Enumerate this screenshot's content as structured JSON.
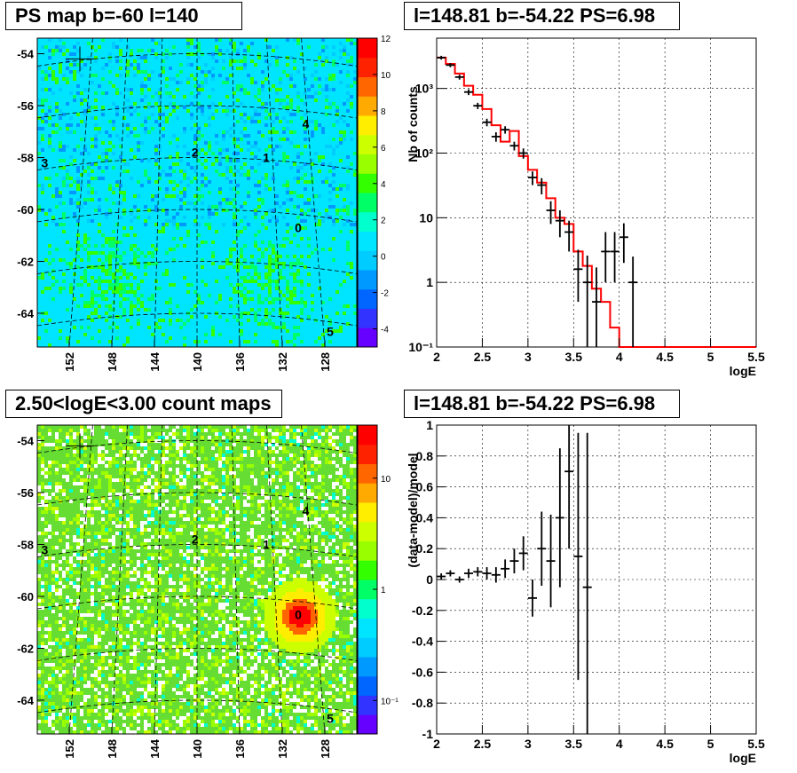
{
  "panels": {
    "map1": {
      "title": "PS map b=-60 l=140",
      "y_ticks": [
        "-54",
        "-56",
        "-58",
        "-60",
        "-62",
        "-64"
      ],
      "x_ticks": [
        "152",
        "148",
        "144",
        "140",
        "136",
        "132",
        "128"
      ],
      "colorbar_ticks": [
        "12",
        "10",
        "8",
        "6",
        "4",
        "2",
        "0",
        "-2",
        "-4"
      ],
      "sources": [
        "0",
        "1",
        "2",
        "3",
        "4",
        "5"
      ]
    },
    "spectrum": {
      "title": "l=148.81 b=-54.22 PS=6.98",
      "ylabel": "Nb of counts",
      "xlabel": "logE",
      "x_ticks": [
        "2",
        "2.5",
        "3",
        "3.5",
        "4",
        "4.5",
        "5",
        "5.5"
      ],
      "y_ticks": [
        "10⁻¹",
        "1",
        "10",
        "10²",
        "10³"
      ]
    },
    "map2": {
      "title": "2.50<logE<3.00 count maps",
      "y_ticks": [
        "-54",
        "-56",
        "-58",
        "-60",
        "-62",
        "-64"
      ],
      "x_ticks": [
        "152",
        "148",
        "144",
        "140",
        "136",
        "132",
        "128"
      ],
      "colorbar_ticks": [
        "10",
        "1",
        "10⁻¹"
      ],
      "sources": [
        "0",
        "1",
        "2",
        "3",
        "4",
        "5"
      ]
    },
    "residual": {
      "title": "l=148.81 b=-54.22 PS=6.98",
      "ylabel": "(data-model)/model",
      "xlabel": "logE",
      "x_ticks": [
        "2",
        "2.5",
        "3",
        "3.5",
        "4",
        "4.5",
        "5",
        "5.5"
      ],
      "y_ticks": [
        "1",
        "0.8",
        "0.6",
        "0.4",
        "0.2",
        "0",
        "-0.2",
        "-0.4",
        "-0.6",
        "-0.8",
        "-1"
      ]
    }
  },
  "colors": {
    "model_line": "#ff0000",
    "data": "#000000",
    "grid": "#000000"
  },
  "chart_data": [
    {
      "type": "heatmap",
      "title": "PS map b=-60 l=140",
      "xlabel": "",
      "ylabel": "",
      "xlim": [
        155,
        125
      ],
      "ylim": [
        -65.3,
        -53.4
      ],
      "zlim": [
        -5,
        12
      ],
      "sources": [
        {
          "label": "0",
          "l": 130.5,
          "b": -60.7
        },
        {
          "label": "1",
          "l": 133.5,
          "b": -58.0
        },
        {
          "label": "2",
          "l": 140.2,
          "b": -57.8
        },
        {
          "label": "3",
          "l": 154.3,
          "b": -58.2
        },
        {
          "label": "4",
          "l": 129.8,
          "b": -56.7
        },
        {
          "label": "5",
          "l": 127.5,
          "b": -64.7
        }
      ]
    },
    {
      "type": "line",
      "title": "l=148.81 b=-54.22 PS=6.98",
      "xlabel": "logE",
      "ylabel": "Nb of counts",
      "xlim": [
        2,
        5.5
      ],
      "ylim": [
        0.1,
        6000
      ],
      "yscale": "log",
      "grid": true,
      "series": [
        {
          "type": "errorbar",
          "x": [
            2.05,
            2.15,
            2.25,
            2.35,
            2.45,
            2.55,
            2.65,
            2.75,
            2.85,
            2.95,
            3.05,
            3.15,
            3.25,
            3.35,
            3.45,
            3.55,
            3.65,
            3.75,
            3.85,
            3.95,
            4.05,
            4.15
          ],
          "values": [
            3000,
            2300,
            1500,
            880,
            540,
            300,
            180,
            230,
            130,
            100,
            42,
            32,
            13,
            9,
            6,
            1.6,
            1,
            0.5,
            3,
            3,
            5,
            1
          ],
          "yerr_low": [
            200,
            170,
            130,
            90,
            60,
            40,
            30,
            30,
            20,
            18,
            10,
            9,
            5,
            4,
            3,
            1.1,
            0.95,
            0.45,
            2,
            2,
            3,
            0.95
          ],
          "yerr_high": [
            200,
            170,
            130,
            90,
            60,
            40,
            30,
            30,
            20,
            18,
            10,
            9,
            5,
            4,
            3,
            1.6,
            1.6,
            1.2,
            3,
            3,
            3.2,
            1.5
          ]
        },
        {
          "type": "step",
          "x": [
            2.0,
            2.1,
            2.2,
            2.3,
            2.4,
            2.5,
            2.6,
            2.7,
            2.8,
            2.9,
            3.0,
            3.1,
            3.2,
            3.3,
            3.4,
            3.5,
            3.6,
            3.7,
            3.8,
            3.9,
            4.0,
            5.5
          ],
          "values": [
            3000,
            2400,
            1700,
            1100,
            800,
            480,
            270,
            150,
            220,
            90,
            55,
            35,
            20,
            10,
            8,
            3,
            1.8,
            0.8,
            0.5,
            0.2,
            0.1,
            0.1
          ]
        }
      ]
    },
    {
      "type": "heatmap",
      "title": "2.50<logE<3.00 count maps",
      "xlabel": "",
      "ylabel": "",
      "xlim": [
        155,
        125
      ],
      "ylim": [
        -65.3,
        -53.4
      ],
      "zscale": "log",
      "zlim": [
        0.05,
        30
      ],
      "sources": [
        {
          "label": "0",
          "l": 130.5,
          "b": -60.7
        },
        {
          "label": "1",
          "l": 133.5,
          "b": -58.0
        },
        {
          "label": "2",
          "l": 140.2,
          "b": -57.8
        },
        {
          "label": "3",
          "l": 154.3,
          "b": -58.2
        },
        {
          "label": "4",
          "l": 129.8,
          "b": -56.7
        },
        {
          "label": "5",
          "l": 127.5,
          "b": -64.7
        }
      ]
    },
    {
      "type": "scatter",
      "title": "l=148.81 b=-54.22 PS=6.98",
      "xlabel": "logE",
      "ylabel": "(data-model)/model",
      "xlim": [
        2,
        5.5
      ],
      "ylim": [
        -1,
        1
      ],
      "grid": true,
      "series": [
        {
          "type": "errorbar",
          "x": [
            2.05,
            2.15,
            2.25,
            2.35,
            2.45,
            2.55,
            2.65,
            2.75,
            2.85,
            2.95,
            3.05,
            3.15,
            3.25,
            3.35,
            3.45,
            3.55,
            3.65
          ],
          "values": [
            0.02,
            0.04,
            0.0,
            0.04,
            0.05,
            0.04,
            0.03,
            0.07,
            0.12,
            0.17,
            -0.12,
            0.2,
            0.12,
            0.4,
            0.7,
            0.15,
            -0.05
          ],
          "yerr": [
            0.02,
            0.02,
            0.02,
            0.03,
            0.03,
            0.04,
            0.05,
            0.06,
            0.08,
            0.11,
            0.12,
            0.24,
            0.3,
            0.45,
            0.5,
            0.8,
            1.0
          ]
        }
      ]
    }
  ]
}
